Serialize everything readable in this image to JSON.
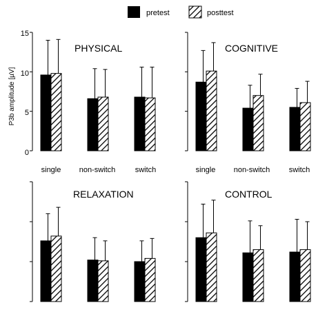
{
  "legend": [
    "pretest",
    "posttest"
  ],
  "ylabel": "P3b amplitude [µV]",
  "categories": [
    "single",
    "non-switch",
    "switch"
  ],
  "yticks": [
    "0",
    "5",
    "10",
    "15"
  ],
  "colors": {
    "pretest": "#000000",
    "posttest_hatch": "#000000"
  },
  "chart_data": [
    {
      "type": "bar",
      "title": "PHYSICAL",
      "categories": [
        "single",
        "non-switch",
        "switch"
      ],
      "ylabel": "P3b amplitude [µV]",
      "ylim": [
        0,
        15
      ],
      "series": [
        {
          "name": "pretest",
          "values": [
            9.6,
            6.6,
            6.8
          ],
          "errors": [
            4.4,
            3.8,
            3.8
          ]
        },
        {
          "name": "posttest",
          "values": [
            9.8,
            6.8,
            6.7
          ],
          "errors": [
            4.3,
            3.5,
            3.9
          ]
        }
      ]
    },
    {
      "type": "bar",
      "title": "COGNITIVE",
      "categories": [
        "single",
        "non-switch",
        "switch"
      ],
      "ylim": [
        0,
        15
      ],
      "series": [
        {
          "name": "pretest",
          "values": [
            8.7,
            5.4,
            5.5
          ],
          "errors": [
            4.0,
            2.9,
            2.4
          ]
        },
        {
          "name": "posttest",
          "values": [
            10.1,
            7.0,
            6.1
          ],
          "errors": [
            3.6,
            2.7,
            2.7
          ]
        }
      ]
    },
    {
      "type": "bar",
      "title": "RELAXATION",
      "categories": [
        "single",
        "non-switch",
        "switch"
      ],
      "ylim": [
        0,
        15
      ],
      "series": [
        {
          "name": "pretest",
          "values": [
            7.6,
            5.2,
            5.0
          ],
          "errors": [
            3.4,
            2.8,
            2.6
          ]
        },
        {
          "name": "posttest",
          "values": [
            8.2,
            5.1,
            5.4
          ],
          "errors": [
            3.6,
            2.5,
            2.5
          ]
        }
      ]
    },
    {
      "type": "bar",
      "title": "CONTROL",
      "categories": [
        "single",
        "non-switch",
        "switch"
      ],
      "ylim": [
        0,
        15
      ],
      "series": [
        {
          "name": "pretest",
          "values": [
            8.0,
            6.1,
            6.2
          ],
          "errors": [
            4.2,
            4.0,
            4.1
          ]
        },
        {
          "name": "posttest",
          "values": [
            8.6,
            6.5,
            6.5
          ],
          "errors": [
            4.1,
            3.0,
            3.5
          ]
        }
      ]
    }
  ]
}
